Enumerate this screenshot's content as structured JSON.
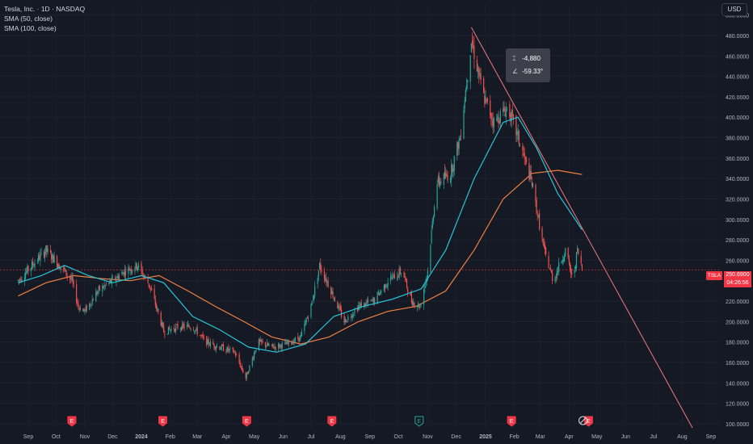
{
  "legend": {
    "title": "Tesla, Inc. · 1D · NASDAQ",
    "sma50": "SMA (50, close)",
    "sma100": "SMA (100, close)"
  },
  "currency": "USD",
  "tooltip": {
    "change": "-4,880",
    "angle": "-59.33°"
  },
  "last_price": {
    "ticker": "TSLA",
    "value": "250.6900",
    "countdown": "04:26:56"
  },
  "colors": {
    "up": "#26a69a",
    "down": "#ef5350",
    "sma50": "#26c6da",
    "sma100": "#f08040",
    "trendline": "#f07b80",
    "earnings": "#f23645",
    "dividend": "#26a69a"
  },
  "chart_data": {
    "type": "candlestick",
    "x_ticks": [
      "Sep",
      "Oct",
      "Nov",
      "Dec",
      "2024",
      "Feb",
      "Mar",
      "Apr",
      "May",
      "Jun",
      "Jul",
      "Aug",
      "Sep",
      "Oct",
      "Nov",
      "Dec",
      "2025",
      "Feb",
      "Mar",
      "Apr",
      "May",
      "Jun",
      "Jul",
      "Aug",
      "Sep"
    ],
    "y_ticks": [
      100,
      120,
      140,
      160,
      180,
      200,
      220,
      240,
      260,
      280,
      300,
      320,
      340,
      360,
      380,
      400,
      420,
      440,
      460,
      480,
      500
    ],
    "y_tick_labels": [
      "100.0000",
      "120.0000",
      "140.0000",
      "160.0000",
      "180.0000",
      "200.0000",
      "220.0000",
      "240.0000",
      "260.0000",
      "280.0000",
      "300.0000",
      "320.0000",
      "340.0000",
      "360.0000",
      "380.0000",
      "400.0000",
      "420.0000",
      "440.0000",
      "460.0000",
      "480.0000",
      "500.0000"
    ],
    "ylim": [
      96,
      510
    ],
    "price_path": [
      [
        "2023-08-21",
        240
      ],
      [
        "2023-09-05",
        255
      ],
      [
        "2023-09-20",
        270
      ],
      [
        "2023-10-05",
        255
      ],
      [
        "2023-10-18",
        240
      ],
      [
        "2023-10-25",
        215
      ],
      [
        "2023-11-01",
        210
      ],
      [
        "2023-11-15",
        230
      ],
      [
        "2023-12-01",
        240
      ],
      [
        "2023-12-15",
        250
      ],
      [
        "2023-12-28",
        255
      ],
      [
        "2024-01-10",
        235
      ],
      [
        "2024-01-25",
        190
      ],
      [
        "2024-02-10",
        195
      ],
      [
        "2024-02-25",
        195
      ],
      [
        "2024-03-10",
        180
      ],
      [
        "2024-03-25",
        175
      ],
      [
        "2024-04-10",
        170
      ],
      [
        "2024-04-22",
        145
      ],
      [
        "2024-05-05",
        180
      ],
      [
        "2024-05-20",
        175
      ],
      [
        "2024-06-05",
        178
      ],
      [
        "2024-06-20",
        185
      ],
      [
        "2024-07-01",
        215
      ],
      [
        "2024-07-10",
        255
      ],
      [
        "2024-07-20",
        235
      ],
      [
        "2024-08-05",
        200
      ],
      [
        "2024-08-20",
        215
      ],
      [
        "2024-09-05",
        220
      ],
      [
        "2024-09-20",
        240
      ],
      [
        "2024-10-05",
        250
      ],
      [
        "2024-10-15",
        220
      ],
      [
        "2024-10-24",
        215
      ],
      [
        "2024-11-01",
        250
      ],
      [
        "2024-11-10",
        335
      ],
      [
        "2024-11-25",
        345
      ],
      [
        "2024-12-05",
        380
      ],
      [
        "2024-12-17",
        475
      ],
      [
        "2024-12-30",
        420
      ],
      [
        "2025-01-10",
        395
      ],
      [
        "2025-01-25",
        410
      ],
      [
        "2025-02-05",
        380
      ],
      [
        "2025-02-20",
        335
      ],
      [
        "2025-03-05",
        270
      ],
      [
        "2025-03-15",
        240
      ],
      [
        "2025-03-28",
        270
      ],
      [
        "2025-04-05",
        240
      ],
      [
        "2025-04-10",
        270
      ],
      [
        "2025-04-15",
        250.69
      ]
    ],
    "sma50_path": [
      [
        "2023-08-21",
        238
      ],
      [
        "2023-09-15",
        245
      ],
      [
        "2023-10-10",
        255
      ],
      [
        "2023-11-05",
        245
      ],
      [
        "2023-12-01",
        238
      ],
      [
        "2024-01-01",
        245
      ],
      [
        "2024-01-25",
        238
      ],
      [
        "2024-02-25",
        205
      ],
      [
        "2024-03-25",
        192
      ],
      [
        "2024-04-25",
        175
      ],
      [
        "2024-05-25",
        170
      ],
      [
        "2024-06-25",
        178
      ],
      [
        "2024-07-25",
        205
      ],
      [
        "2024-08-25",
        215
      ],
      [
        "2024-09-25",
        222
      ],
      [
        "2024-10-25",
        232
      ],
      [
        "2024-11-20",
        270
      ],
      [
        "2024-12-20",
        340
      ],
      [
        "2025-01-20",
        395
      ],
      [
        "2025-02-05",
        400
      ],
      [
        "2025-02-25",
        370
      ],
      [
        "2025-03-20",
        325
      ],
      [
        "2025-04-15",
        290
      ]
    ],
    "sma100_path": [
      [
        "2023-08-21",
        225
      ],
      [
        "2023-09-20",
        238
      ],
      [
        "2023-10-20",
        245
      ],
      [
        "2023-11-20",
        242
      ],
      [
        "2023-12-20",
        240
      ],
      [
        "2024-01-20",
        245
      ],
      [
        "2024-02-20",
        230
      ],
      [
        "2024-03-20",
        215
      ],
      [
        "2024-04-20",
        200
      ],
      [
        "2024-05-20",
        185
      ],
      [
        "2024-06-20",
        178
      ],
      [
        "2024-07-20",
        185
      ],
      [
        "2024-08-20",
        200
      ],
      [
        "2024-09-20",
        210
      ],
      [
        "2024-10-20",
        215
      ],
      [
        "2024-11-20",
        230
      ],
      [
        "2024-12-20",
        270
      ],
      [
        "2025-01-20",
        320
      ],
      [
        "2025-02-20",
        345
      ],
      [
        "2025-03-20",
        348
      ],
      [
        "2025-04-15",
        344
      ]
    ],
    "trendline": {
      "from": [
        "2024-12-17",
        488
      ],
      "to": [
        "2025-08-12",
        96
      ]
    },
    "last_price": 250.69,
    "earnings_markers": [
      "2023-10-18",
      "2024-01-24",
      "2024-04-23",
      "2024-07-23",
      "2025-01-29",
      "2025-04-22"
    ],
    "dividend_markers": [
      "2024-10-23"
    ],
    "split_markers": [
      "2025-04-16"
    ]
  }
}
